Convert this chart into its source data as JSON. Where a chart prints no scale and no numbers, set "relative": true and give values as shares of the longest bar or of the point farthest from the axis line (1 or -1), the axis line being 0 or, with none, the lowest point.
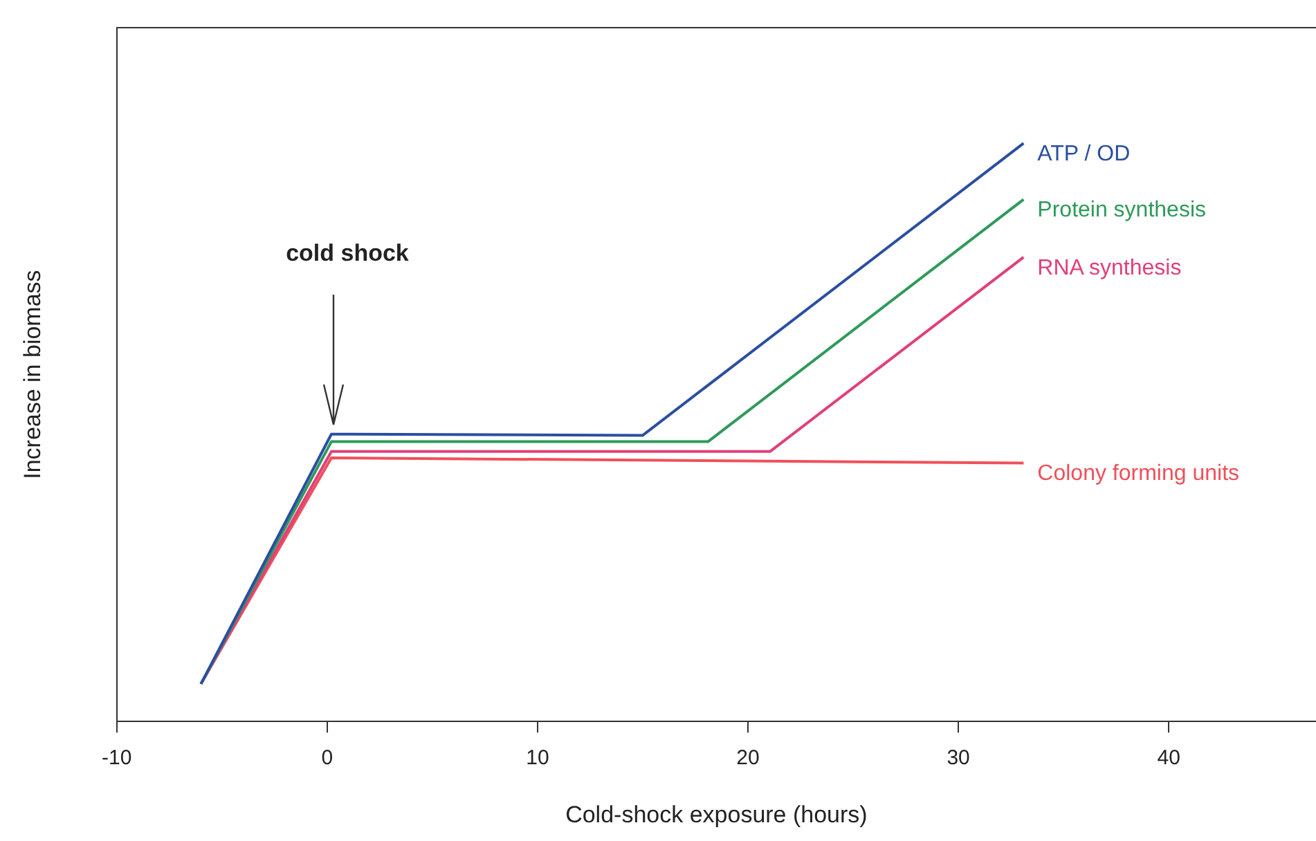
{
  "chart_data": {
    "type": "line",
    "relative": true,
    "xlabel": "Cold-shock exposure (hours)",
    "ylabel": "Increase in biomass",
    "xlim": [
      -10,
      47
    ],
    "xticks": [
      -10,
      0,
      10,
      20,
      30,
      40
    ],
    "tick_labels": "x",
    "grid": false,
    "legend": false,
    "marker": "none",
    "line_style": "solid",
    "annotations": [
      {
        "text": "cold shock",
        "x": 0.3,
        "y": 0.497
      }
    ],
    "series": [
      {
        "name": "ATP / OD",
        "color": "#2b4ea0",
        "x": [
          -6,
          0.2,
          15,
          33.1
        ],
        "values": [
          0.065,
          0.497,
          0.495,
          1
        ]
      },
      {
        "name": "Protein synthesis",
        "color": "#2e9a5a",
        "x": [
          -6,
          0.2,
          18.1,
          33.1
        ],
        "values": [
          0.065,
          0.484,
          0.484,
          0.903
        ]
      },
      {
        "name": "RNA synthesis",
        "color": "#e0407a",
        "x": [
          -6,
          0.2,
          21.05,
          33.1
        ],
        "values": [
          0.065,
          0.467,
          0.467,
          0.803
        ]
      },
      {
        "name": "Colony forming units",
        "color": "#f0505a",
        "x": [
          -6,
          0.2,
          33.1
        ],
        "values": [
          0.065,
          0.456,
          0.447
        ]
      }
    ]
  }
}
